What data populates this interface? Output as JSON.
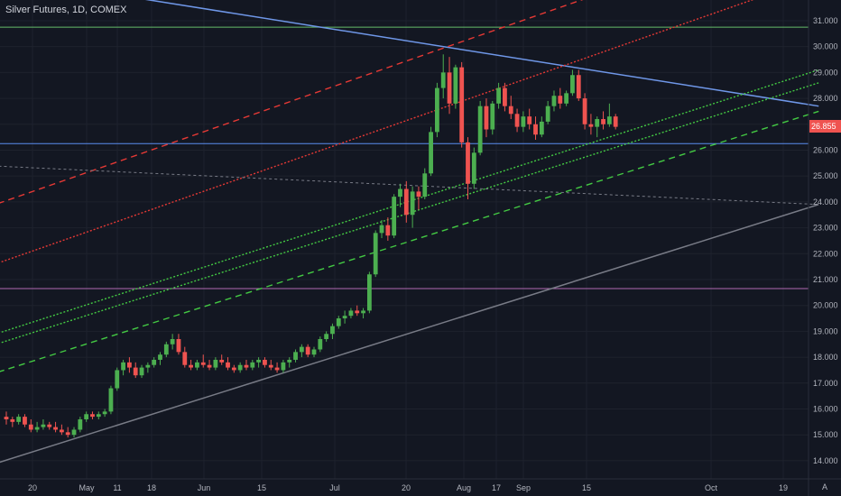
{
  "title": "Silver Futures, 1D, COMEX",
  "corner_label": "A",
  "colors": {
    "background": "#131722",
    "grid": "#1e222d",
    "axis_text": "#b2b5be",
    "bull": "#26a69a",
    "bull_green": "#4caf50",
    "bear": "#ef5350",
    "blue_line": "#5b8def",
    "trend_blue": "#6f97e8",
    "green_hline": "#66bb6a",
    "purple_hline": "#b06ab3",
    "gray_trend": "#787b86",
    "red_dash": "#e53935",
    "green_dash": "#43c943",
    "price_badge": "#ef5350"
  },
  "chart_data": {
    "type": "candlestick",
    "title": "Silver Futures, 1D, COMEX",
    "ylim": [
      13.3,
      31.8
    ],
    "y_ticks": [
      "14.000",
      "15.000",
      "16.000",
      "17.000",
      "18.000",
      "19.000",
      "20.000",
      "21.000",
      "22.000",
      "23.000",
      "24.000",
      "25.000",
      "26.000",
      "27.000",
      "28.000",
      "29.000",
      "30.000",
      "31.000"
    ],
    "x_ticks": [
      "20",
      "May",
      "11",
      "18",
      "Jun",
      "15",
      "Jul",
      "20",
      "Aug",
      "17",
      "Sep",
      "15",
      "Oct",
      "19"
    ],
    "last_price": "26.855",
    "candles": [
      [
        15.7,
        15.9,
        15.4,
        15.6
      ],
      [
        15.6,
        15.7,
        15.3,
        15.5
      ],
      [
        15.5,
        15.8,
        15.4,
        15.7
      ],
      [
        15.7,
        15.8,
        15.3,
        15.4
      ],
      [
        15.4,
        15.6,
        15.1,
        15.2
      ],
      [
        15.2,
        15.5,
        15.1,
        15.3
      ],
      [
        15.3,
        15.6,
        15.2,
        15.4
      ],
      [
        15.4,
        15.5,
        15.2,
        15.3
      ],
      [
        15.3,
        15.5,
        15.1,
        15.2
      ],
      [
        15.2,
        15.4,
        15.0,
        15.1
      ],
      [
        15.1,
        15.3,
        14.9,
        15.0
      ],
      [
        15.0,
        15.3,
        14.9,
        15.2
      ],
      [
        15.2,
        15.7,
        15.1,
        15.6
      ],
      [
        15.6,
        15.9,
        15.5,
        15.8
      ],
      [
        15.8,
        15.9,
        15.6,
        15.7
      ],
      [
        15.7,
        15.9,
        15.6,
        15.8
      ],
      [
        15.8,
        16.0,
        15.7,
        15.9
      ],
      [
        15.9,
        16.9,
        15.8,
        16.8
      ],
      [
        16.8,
        17.6,
        16.7,
        17.5
      ],
      [
        17.5,
        17.9,
        17.3,
        17.8
      ],
      [
        17.8,
        18.0,
        17.4,
        17.6
      ],
      [
        17.6,
        17.8,
        17.2,
        17.3
      ],
      [
        17.3,
        17.7,
        17.2,
        17.6
      ],
      [
        17.6,
        17.8,
        17.4,
        17.7
      ],
      [
        17.7,
        18.0,
        17.6,
        17.9
      ],
      [
        17.9,
        18.2,
        17.7,
        18.1
      ],
      [
        18.1,
        18.6,
        18.0,
        18.5
      ],
      [
        18.5,
        18.9,
        18.3,
        18.7
      ],
      [
        18.7,
        18.9,
        18.1,
        18.2
      ],
      [
        18.2,
        18.4,
        17.6,
        17.7
      ],
      [
        17.7,
        17.9,
        17.5,
        17.6
      ],
      [
        17.6,
        17.9,
        17.5,
        17.8
      ],
      [
        17.8,
        18.1,
        17.6,
        17.7
      ],
      [
        17.7,
        17.9,
        17.5,
        17.6
      ],
      [
        17.6,
        18.0,
        17.5,
        17.9
      ],
      [
        17.9,
        18.1,
        17.7,
        17.8
      ],
      [
        17.8,
        18.0,
        17.5,
        17.6
      ],
      [
        17.6,
        17.7,
        17.4,
        17.5
      ],
      [
        17.5,
        17.8,
        17.4,
        17.7
      ],
      [
        17.7,
        17.9,
        17.5,
        17.6
      ],
      [
        17.6,
        17.9,
        17.5,
        17.8
      ],
      [
        17.8,
        18.0,
        17.6,
        17.9
      ],
      [
        17.9,
        18.0,
        17.6,
        17.7
      ],
      [
        17.7,
        17.9,
        17.5,
        17.6
      ],
      [
        17.6,
        17.8,
        17.4,
        17.5
      ],
      [
        17.5,
        17.9,
        17.4,
        17.8
      ],
      [
        17.8,
        18.0,
        17.6,
        17.9
      ],
      [
        17.9,
        18.3,
        17.8,
        18.2
      ],
      [
        18.2,
        18.5,
        18.0,
        18.4
      ],
      [
        18.4,
        18.5,
        18.0,
        18.1
      ],
      [
        18.1,
        18.4,
        18.0,
        18.3
      ],
      [
        18.3,
        18.8,
        18.2,
        18.7
      ],
      [
        18.7,
        19.0,
        18.6,
        18.9
      ],
      [
        18.9,
        19.3,
        18.7,
        19.2
      ],
      [
        19.2,
        19.6,
        19.1,
        19.5
      ],
      [
        19.5,
        19.8,
        19.3,
        19.6
      ],
      [
        19.6,
        19.9,
        19.5,
        19.8
      ],
      [
        19.8,
        20.0,
        19.6,
        19.7
      ],
      [
        19.7,
        19.9,
        19.5,
        19.8
      ],
      [
        19.8,
        21.3,
        19.7,
        21.2
      ],
      [
        21.2,
        22.9,
        21.1,
        22.8
      ],
      [
        22.8,
        23.3,
        22.6,
        23.1
      ],
      [
        23.1,
        23.4,
        22.5,
        22.7
      ],
      [
        22.7,
        24.3,
        22.6,
        24.2
      ],
      [
        24.2,
        24.7,
        23.8,
        24.5
      ],
      [
        24.5,
        24.8,
        23.2,
        23.5
      ],
      [
        23.5,
        24.6,
        23.0,
        24.4
      ],
      [
        24.4,
        24.6,
        23.7,
        24.2
      ],
      [
        24.2,
        25.3,
        24.1,
        25.1
      ],
      [
        25.1,
        26.9,
        25.0,
        26.7
      ],
      [
        26.7,
        28.6,
        26.5,
        28.4
      ],
      [
        28.4,
        29.7,
        28.0,
        29.0
      ],
      [
        29.0,
        29.6,
        27.4,
        27.8
      ],
      [
        27.8,
        29.3,
        27.6,
        29.2
      ],
      [
        29.2,
        29.4,
        26.1,
        26.3
      ],
      [
        26.3,
        26.5,
        24.1,
        24.7
      ],
      [
        24.7,
        26.1,
        24.5,
        25.9
      ],
      [
        25.9,
        27.9,
        25.8,
        27.7
      ],
      [
        27.7,
        28.0,
        26.5,
        26.8
      ],
      [
        26.8,
        27.9,
        26.6,
        27.8
      ],
      [
        27.8,
        28.6,
        27.6,
        28.4
      ],
      [
        28.4,
        28.6,
        27.5,
        27.7
      ],
      [
        27.7,
        28.1,
        27.2,
        27.4
      ],
      [
        27.4,
        27.6,
        26.7,
        26.9
      ],
      [
        26.9,
        27.5,
        26.7,
        27.3
      ],
      [
        27.3,
        27.6,
        26.8,
        27.0
      ],
      [
        27.0,
        27.3,
        26.4,
        26.6
      ],
      [
        26.6,
        27.3,
        26.5,
        27.1
      ],
      [
        27.1,
        27.9,
        27.0,
        27.7
      ],
      [
        27.7,
        28.3,
        27.5,
        28.1
      ],
      [
        28.1,
        28.4,
        27.6,
        27.8
      ],
      [
        27.8,
        28.3,
        27.7,
        28.2
      ],
      [
        28.2,
        29.1,
        28.1,
        28.9
      ],
      [
        28.9,
        29.1,
        27.9,
        28.0
      ],
      [
        28.0,
        28.2,
        26.8,
        27.0
      ],
      [
        27.0,
        27.4,
        26.6,
        26.9
      ],
      [
        26.9,
        27.3,
        26.5,
        27.2
      ],
      [
        27.2,
        27.5,
        26.8,
        27.0
      ],
      [
        27.0,
        27.8,
        26.9,
        27.3
      ],
      [
        27.3,
        27.4,
        26.8,
        26.9
      ]
    ],
    "lines": [
      {
        "style": "solid",
        "color": "blue",
        "from": [
          15.3,
          32.1
        ],
        "to": [
          132,
          27.7
        ]
      },
      {
        "style": "solid",
        "color": "gray",
        "from": [
          -3,
          13.8
        ],
        "to": [
          132,
          23.9
        ]
      },
      {
        "style": "dashed",
        "color": "red",
        "from": [
          -3,
          23.8
        ],
        "to": [
          132,
          35.0
        ]
      },
      {
        "style": "dotted",
        "color": "red",
        "from": [
          -3,
          21.5
        ],
        "to": [
          132,
          32.7
        ]
      },
      {
        "style": "dotted",
        "color": "green",
        "from": [
          -3,
          18.8
        ],
        "to": [
          132,
          29.1
        ]
      },
      {
        "style": "dotted",
        "color": "green",
        "from": [
          -3,
          18.4
        ],
        "to": [
          132,
          28.6
        ]
      },
      {
        "style": "dashed",
        "color": "green",
        "from": [
          -3,
          17.3
        ],
        "to": [
          132,
          27.5
        ]
      },
      {
        "style": "dashed",
        "color": "gray",
        "from": [
          -3,
          25.4
        ],
        "to": [
          132,
          23.9
        ]
      }
    ],
    "hlines": [
      {
        "value": 30.75,
        "color": "green"
      },
      {
        "value": 26.25,
        "color": "blue"
      },
      {
        "value": 20.65,
        "color": "purple"
      }
    ]
  }
}
